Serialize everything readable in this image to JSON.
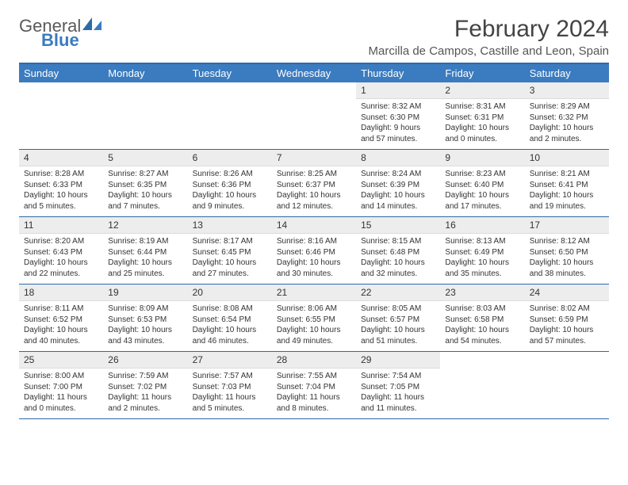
{
  "brand": {
    "name_part1": "General",
    "name_part2": "Blue"
  },
  "title": "February 2024",
  "location": "Marcilla de Campos, Castille and Leon, Spain",
  "colors": {
    "header_bg": "#3b7bbf",
    "header_border": "#2d6aa8",
    "daynum_bg": "#ededed",
    "text": "#333333"
  },
  "day_names": [
    "Sunday",
    "Monday",
    "Tuesday",
    "Wednesday",
    "Thursday",
    "Friday",
    "Saturday"
  ],
  "weeks": [
    [
      null,
      null,
      null,
      null,
      {
        "n": "1",
        "sunrise": "Sunrise: 8:32 AM",
        "sunset": "Sunset: 6:30 PM",
        "daylight": "Daylight: 9 hours and 57 minutes."
      },
      {
        "n": "2",
        "sunrise": "Sunrise: 8:31 AM",
        "sunset": "Sunset: 6:31 PM",
        "daylight": "Daylight: 10 hours and 0 minutes."
      },
      {
        "n": "3",
        "sunrise": "Sunrise: 8:29 AM",
        "sunset": "Sunset: 6:32 PM",
        "daylight": "Daylight: 10 hours and 2 minutes."
      }
    ],
    [
      {
        "n": "4",
        "sunrise": "Sunrise: 8:28 AM",
        "sunset": "Sunset: 6:33 PM",
        "daylight": "Daylight: 10 hours and 5 minutes."
      },
      {
        "n": "5",
        "sunrise": "Sunrise: 8:27 AM",
        "sunset": "Sunset: 6:35 PM",
        "daylight": "Daylight: 10 hours and 7 minutes."
      },
      {
        "n": "6",
        "sunrise": "Sunrise: 8:26 AM",
        "sunset": "Sunset: 6:36 PM",
        "daylight": "Daylight: 10 hours and 9 minutes."
      },
      {
        "n": "7",
        "sunrise": "Sunrise: 8:25 AM",
        "sunset": "Sunset: 6:37 PM",
        "daylight": "Daylight: 10 hours and 12 minutes."
      },
      {
        "n": "8",
        "sunrise": "Sunrise: 8:24 AM",
        "sunset": "Sunset: 6:39 PM",
        "daylight": "Daylight: 10 hours and 14 minutes."
      },
      {
        "n": "9",
        "sunrise": "Sunrise: 8:23 AM",
        "sunset": "Sunset: 6:40 PM",
        "daylight": "Daylight: 10 hours and 17 minutes."
      },
      {
        "n": "10",
        "sunrise": "Sunrise: 8:21 AM",
        "sunset": "Sunset: 6:41 PM",
        "daylight": "Daylight: 10 hours and 19 minutes."
      }
    ],
    [
      {
        "n": "11",
        "sunrise": "Sunrise: 8:20 AM",
        "sunset": "Sunset: 6:43 PM",
        "daylight": "Daylight: 10 hours and 22 minutes."
      },
      {
        "n": "12",
        "sunrise": "Sunrise: 8:19 AM",
        "sunset": "Sunset: 6:44 PM",
        "daylight": "Daylight: 10 hours and 25 minutes."
      },
      {
        "n": "13",
        "sunrise": "Sunrise: 8:17 AM",
        "sunset": "Sunset: 6:45 PM",
        "daylight": "Daylight: 10 hours and 27 minutes."
      },
      {
        "n": "14",
        "sunrise": "Sunrise: 8:16 AM",
        "sunset": "Sunset: 6:46 PM",
        "daylight": "Daylight: 10 hours and 30 minutes."
      },
      {
        "n": "15",
        "sunrise": "Sunrise: 8:15 AM",
        "sunset": "Sunset: 6:48 PM",
        "daylight": "Daylight: 10 hours and 32 minutes."
      },
      {
        "n": "16",
        "sunrise": "Sunrise: 8:13 AM",
        "sunset": "Sunset: 6:49 PM",
        "daylight": "Daylight: 10 hours and 35 minutes."
      },
      {
        "n": "17",
        "sunrise": "Sunrise: 8:12 AM",
        "sunset": "Sunset: 6:50 PM",
        "daylight": "Daylight: 10 hours and 38 minutes."
      }
    ],
    [
      {
        "n": "18",
        "sunrise": "Sunrise: 8:11 AM",
        "sunset": "Sunset: 6:52 PM",
        "daylight": "Daylight: 10 hours and 40 minutes."
      },
      {
        "n": "19",
        "sunrise": "Sunrise: 8:09 AM",
        "sunset": "Sunset: 6:53 PM",
        "daylight": "Daylight: 10 hours and 43 minutes."
      },
      {
        "n": "20",
        "sunrise": "Sunrise: 8:08 AM",
        "sunset": "Sunset: 6:54 PM",
        "daylight": "Daylight: 10 hours and 46 minutes."
      },
      {
        "n": "21",
        "sunrise": "Sunrise: 8:06 AM",
        "sunset": "Sunset: 6:55 PM",
        "daylight": "Daylight: 10 hours and 49 minutes."
      },
      {
        "n": "22",
        "sunrise": "Sunrise: 8:05 AM",
        "sunset": "Sunset: 6:57 PM",
        "daylight": "Daylight: 10 hours and 51 minutes."
      },
      {
        "n": "23",
        "sunrise": "Sunrise: 8:03 AM",
        "sunset": "Sunset: 6:58 PM",
        "daylight": "Daylight: 10 hours and 54 minutes."
      },
      {
        "n": "24",
        "sunrise": "Sunrise: 8:02 AM",
        "sunset": "Sunset: 6:59 PM",
        "daylight": "Daylight: 10 hours and 57 minutes."
      }
    ],
    [
      {
        "n": "25",
        "sunrise": "Sunrise: 8:00 AM",
        "sunset": "Sunset: 7:00 PM",
        "daylight": "Daylight: 11 hours and 0 minutes."
      },
      {
        "n": "26",
        "sunrise": "Sunrise: 7:59 AM",
        "sunset": "Sunset: 7:02 PM",
        "daylight": "Daylight: 11 hours and 2 minutes."
      },
      {
        "n": "27",
        "sunrise": "Sunrise: 7:57 AM",
        "sunset": "Sunset: 7:03 PM",
        "daylight": "Daylight: 11 hours and 5 minutes."
      },
      {
        "n": "28",
        "sunrise": "Sunrise: 7:55 AM",
        "sunset": "Sunset: 7:04 PM",
        "daylight": "Daylight: 11 hours and 8 minutes."
      },
      {
        "n": "29",
        "sunrise": "Sunrise: 7:54 AM",
        "sunset": "Sunset: 7:05 PM",
        "daylight": "Daylight: 11 hours and 11 minutes."
      },
      null,
      null
    ]
  ]
}
